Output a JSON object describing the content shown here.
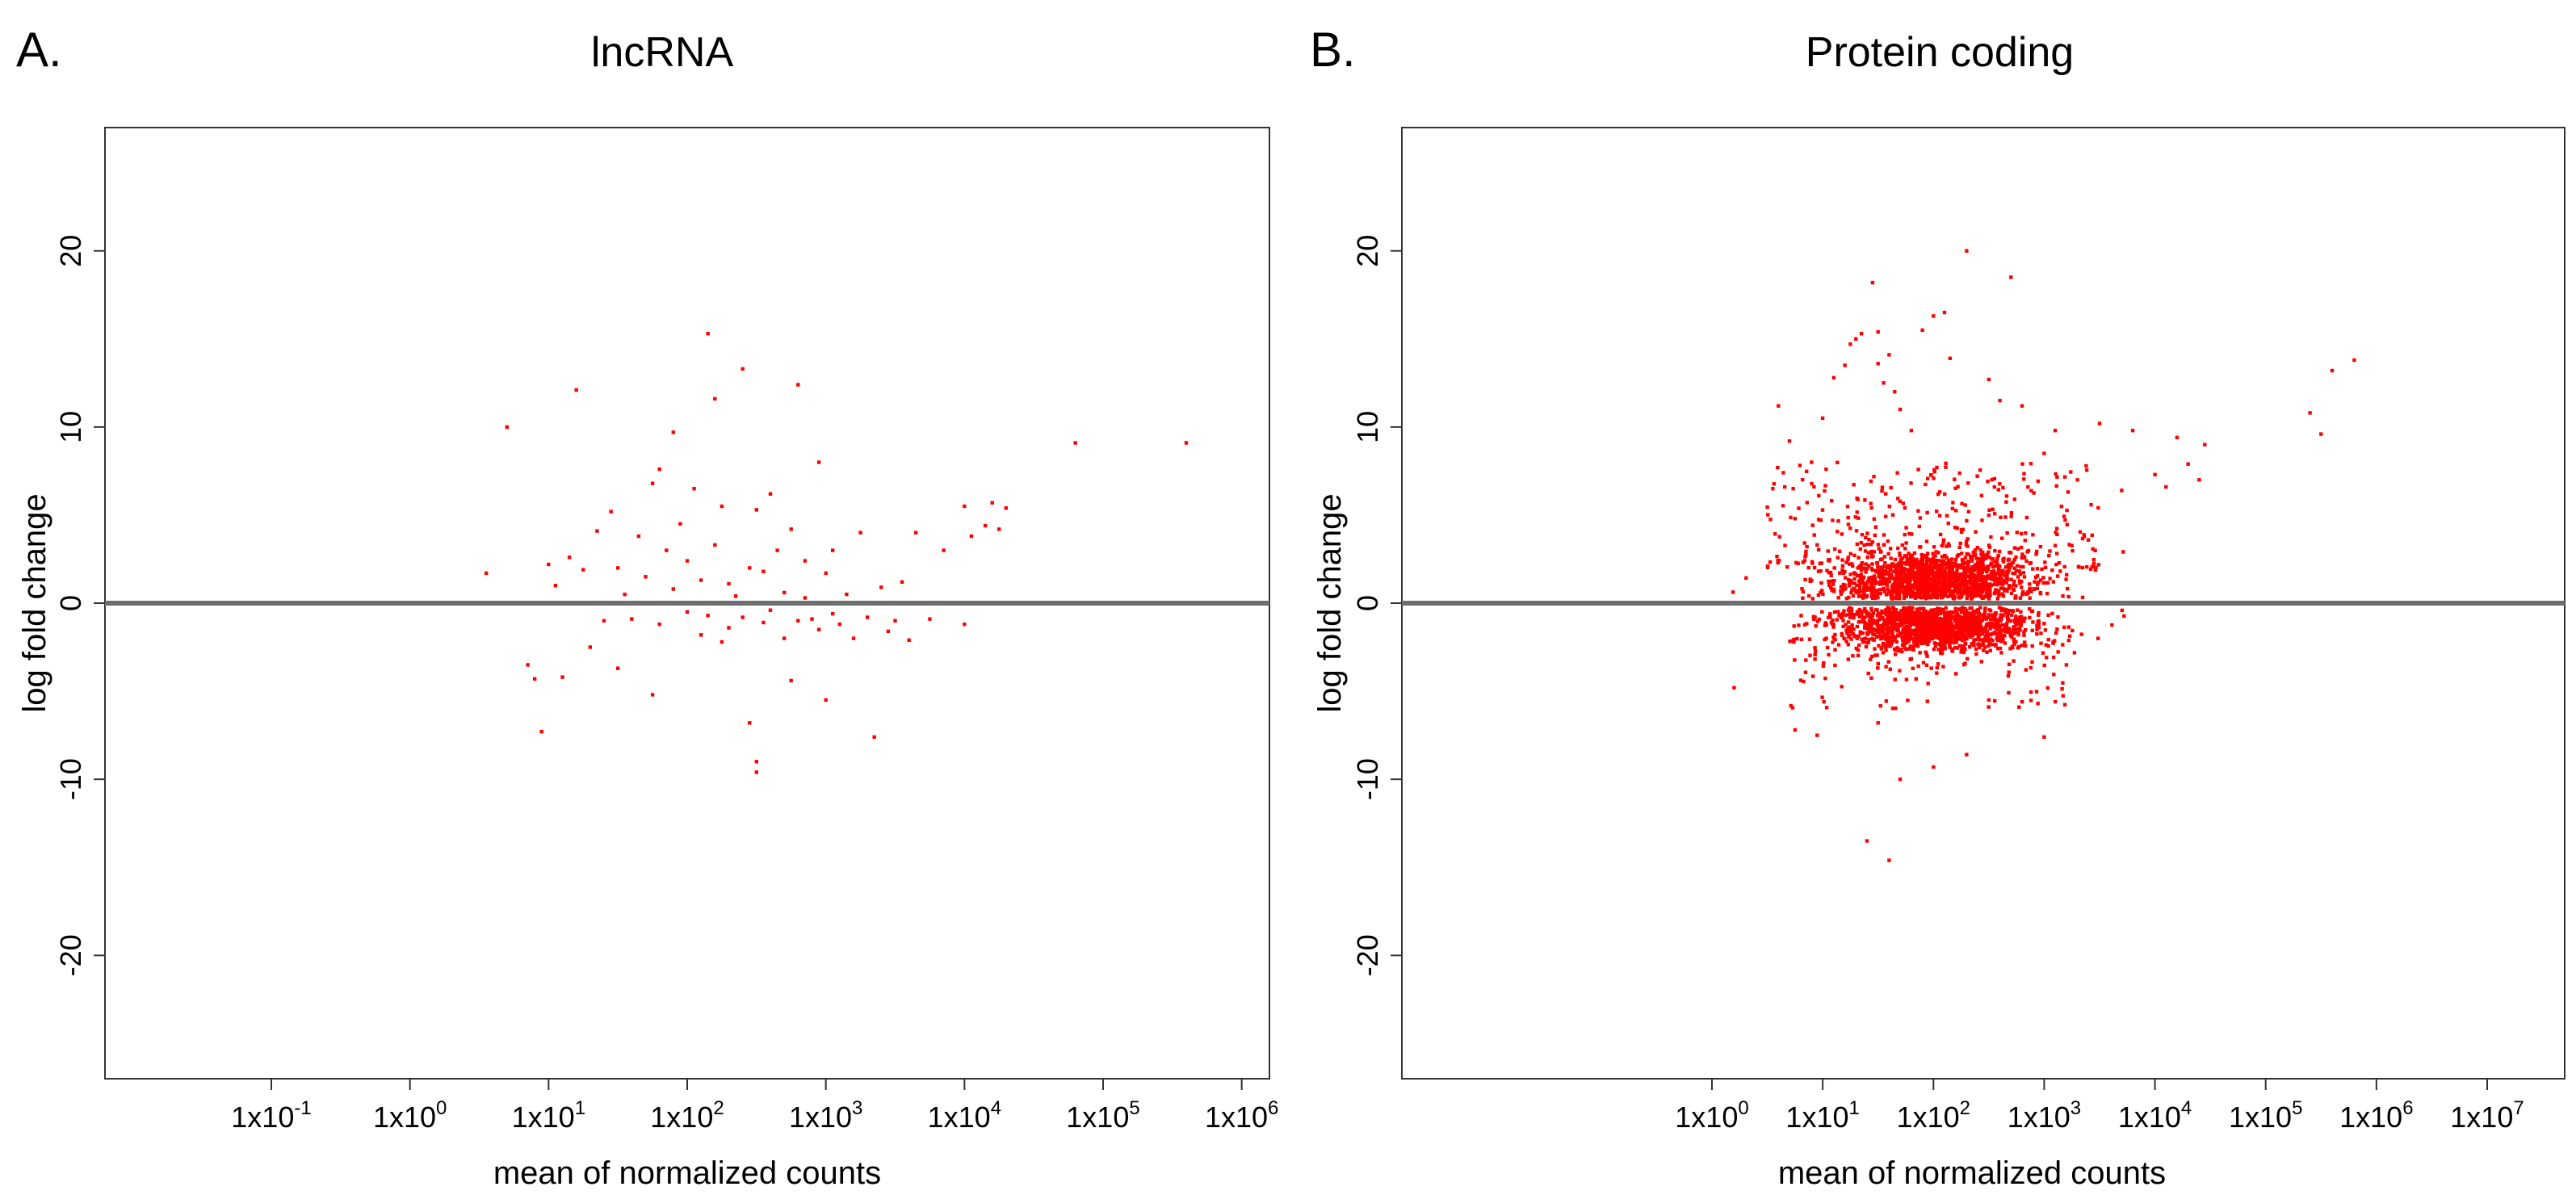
{
  "chart_data": [
    {
      "type": "scatter",
      "panel_label": "A.",
      "title": "lncRNA",
      "xlabel": "mean of normalized counts",
      "ylabel": "log fold change",
      "xscale": "log10",
      "xlim_log10": [
        -2.2,
        6.2
      ],
      "ylim": [
        -27,
        27
      ],
      "x_tick_labels": [
        {
          "exp": -1,
          "base": "1x10",
          "sup": "-1"
        },
        {
          "exp": 0,
          "base": "1x10",
          "sup": "0"
        },
        {
          "exp": 1,
          "base": "1x10",
          "sup": "1"
        },
        {
          "exp": 2,
          "base": "1x10",
          "sup": "2"
        },
        {
          "exp": 3,
          "base": "1x10",
          "sup": "3"
        },
        {
          "exp": 4,
          "base": "1x10",
          "sup": "4"
        },
        {
          "exp": 5,
          "base": "1x10",
          "sup": "5"
        },
        {
          "exp": 6,
          "base": "1x10",
          "sup": "6"
        }
      ],
      "y_ticks": [
        {
          "value": -20,
          "label": "-20"
        },
        {
          "value": -10,
          "label": "-10"
        },
        {
          "value": 0,
          "label": "0"
        },
        {
          "value": 10,
          "label": "10"
        },
        {
          "value": 20,
          "label": "20"
        }
      ],
      "zero_line": 0,
      "point_color": "#ff0000",
      "line_color": "#6e6e6e",
      "points_log10x_y": [
        [
          0.55,
          1.7
        ],
        [
          0.7,
          10
        ],
        [
          0.85,
          -3.5
        ],
        [
          0.9,
          -4.3
        ],
        [
          0.95,
          -7.3
        ],
        [
          1.0,
          2.2
        ],
        [
          1.05,
          1.0
        ],
        [
          1.1,
          -4.2
        ],
        [
          1.15,
          2.6
        ],
        [
          1.2,
          12.1
        ],
        [
          1.25,
          1.9
        ],
        [
          1.3,
          -2.5
        ],
        [
          1.35,
          4.1
        ],
        [
          1.4,
          -1.0
        ],
        [
          1.45,
          5.2
        ],
        [
          1.5,
          -3.7
        ],
        [
          1.5,
          2.0
        ],
        [
          1.55,
          0.5
        ],
        [
          1.6,
          -0.9
        ],
        [
          1.65,
          3.8
        ],
        [
          1.7,
          1.5
        ],
        [
          1.75,
          -5.2
        ],
        [
          1.75,
          6.8
        ],
        [
          1.8,
          7.6
        ],
        [
          1.8,
          -1.2
        ],
        [
          1.85,
          3.0
        ],
        [
          1.9,
          9.7
        ],
        [
          1.9,
          0.8
        ],
        [
          1.95,
          4.5
        ],
        [
          2.0,
          2.4
        ],
        [
          2.0,
          -0.5
        ],
        [
          2.05,
          6.5
        ],
        [
          2.1,
          -1.8
        ],
        [
          2.1,
          1.3
        ],
        [
          2.15,
          15.3
        ],
        [
          2.15,
          -0.7
        ],
        [
          2.2,
          11.6
        ],
        [
          2.2,
          3.3
        ],
        [
          2.25,
          -2.2
        ],
        [
          2.25,
          5.5
        ],
        [
          2.3,
          1.1
        ],
        [
          2.3,
          -1.4
        ],
        [
          2.35,
          0.4
        ],
        [
          2.4,
          13.3
        ],
        [
          2.4,
          -0.8
        ],
        [
          2.45,
          2.0
        ],
        [
          2.45,
          -6.8
        ],
        [
          2.5,
          -9.0
        ],
        [
          2.5,
          -9.6
        ],
        [
          2.5,
          5.3
        ],
        [
          2.55,
          1.8
        ],
        [
          2.55,
          -1.1
        ],
        [
          2.6,
          6.2
        ],
        [
          2.6,
          -0.4
        ],
        [
          2.65,
          3.0
        ],
        [
          2.7,
          -2.0
        ],
        [
          2.7,
          0.6
        ],
        [
          2.75,
          4.2
        ],
        [
          2.75,
          -4.4
        ],
        [
          2.8,
          12.4
        ],
        [
          2.8,
          -1.0
        ],
        [
          2.85,
          2.4
        ],
        [
          2.85,
          0.3
        ],
        [
          2.9,
          -0.9
        ],
        [
          2.95,
          8.0
        ],
        [
          2.95,
          -1.5
        ],
        [
          3.0,
          1.7
        ],
        [
          3.0,
          -5.5
        ],
        [
          3.05,
          -0.6
        ],
        [
          3.05,
          3.0
        ],
        [
          3.1,
          -1.2
        ],
        [
          3.15,
          0.5
        ],
        [
          3.2,
          -2.0
        ],
        [
          3.25,
          4.0
        ],
        [
          3.3,
          -0.8
        ],
        [
          3.35,
          -7.6
        ],
        [
          3.4,
          0.9
        ],
        [
          3.45,
          -1.6
        ],
        [
          3.5,
          -1.0
        ],
        [
          3.55,
          1.2
        ],
        [
          3.6,
          -2.1
        ],
        [
          3.65,
          4.0
        ],
        [
          3.75,
          -0.9
        ],
        [
          3.85,
          3.0
        ],
        [
          4.0,
          5.5
        ],
        [
          4.0,
          -1.2
        ],
        [
          4.05,
          3.8
        ],
        [
          4.15,
          4.4
        ],
        [
          4.2,
          5.7
        ],
        [
          4.25,
          4.2
        ],
        [
          4.3,
          5.4
        ],
        [
          4.8,
          9.1
        ],
        [
          5.6,
          9.1
        ],
        [
          6.3,
          9.2
        ],
        [
          7.1,
          12.3
        ],
        [
          7.4,
          15.5
        ]
      ]
    },
    {
      "type": "scatter",
      "panel_label": "B.",
      "title": "Protein coding",
      "xlabel": "mean of normalized counts",
      "ylabel": "log fold change",
      "xscale": "log10",
      "xlim_log10": [
        -2.8,
        7.7
      ],
      "ylim": [
        -27,
        27
      ],
      "x_tick_labels": [
        {
          "exp": 0,
          "base": "1x10",
          "sup": "0"
        },
        {
          "exp": 1,
          "base": "1x10",
          "sup": "1"
        },
        {
          "exp": 2,
          "base": "1x10",
          "sup": "2"
        },
        {
          "exp": 3,
          "base": "1x10",
          "sup": "3"
        },
        {
          "exp": 4,
          "base": "1x10",
          "sup": "4"
        },
        {
          "exp": 5,
          "base": "1x10",
          "sup": "5"
        },
        {
          "exp": 6,
          "base": "1x10",
          "sup": "6"
        },
        {
          "exp": 7,
          "base": "1x10",
          "sup": "7"
        }
      ],
      "y_ticks": [
        {
          "value": -20,
          "label": "-20"
        },
        {
          "value": -10,
          "label": "-10"
        },
        {
          "value": 0,
          "label": "0"
        },
        {
          "value": 10,
          "label": "10"
        },
        {
          "value": 20,
          "label": "20"
        }
      ],
      "zero_line": 0,
      "point_color": "#ff0000",
      "line_color": "#6e6e6e",
      "cloud": {
        "upper_band": {
          "x_center_log10": 2.0,
          "x_sd_log10": 0.45,
          "y_center": 1.3,
          "y_sd": 0.8,
          "count": 1400
        },
        "lower_band": {
          "x_center_log10": 2.0,
          "x_sd_log10": 0.45,
          "y_center": -1.3,
          "y_sd": 0.7,
          "count": 1400
        },
        "scatter_up": {
          "x_range_log10": [
            0.5,
            3.5
          ],
          "y_range": [
            2,
            8
          ],
          "count": 320
        },
        "scatter_down": {
          "x_range_log10": [
            0.7,
            3.2
          ],
          "y_range": [
            -6,
            -2
          ],
          "count": 120
        }
      },
      "points_log10x_y": [
        [
          0.2,
          -4.8
        ],
        [
          0.75,
          -7.2
        ],
        [
          0.95,
          -7.5
        ],
        [
          1.4,
          -13.5
        ],
        [
          1.6,
          -14.6
        ],
        [
          0.55,
          6.5
        ],
        [
          0.6,
          11.2
        ],
        [
          0.7,
          9.2
        ],
        [
          0.75,
          4.8
        ],
        [
          0.9,
          8.0
        ],
        [
          1.0,
          10.5
        ],
        [
          1.1,
          12.8
        ],
        [
          1.2,
          13.5
        ],
        [
          1.25,
          14.7
        ],
        [
          1.3,
          15.0
        ],
        [
          1.35,
          15.3
        ],
        [
          1.45,
          18.2
        ],
        [
          1.5,
          13.6
        ],
        [
          1.5,
          15.4
        ],
        [
          1.55,
          12.5
        ],
        [
          1.6,
          14.1
        ],
        [
          1.65,
          12.0
        ],
        [
          1.7,
          11.0
        ],
        [
          1.8,
          9.8
        ],
        [
          1.9,
          15.5
        ],
        [
          2.0,
          16.3
        ],
        [
          2.1,
          16.5
        ],
        [
          2.15,
          13.9
        ],
        [
          2.3,
          20.0
        ],
        [
          2.5,
          12.7
        ],
        [
          2.6,
          11.5
        ],
        [
          2.7,
          18.5
        ],
        [
          2.8,
          11.2
        ],
        [
          3.0,
          8.5
        ],
        [
          3.1,
          9.8
        ],
        [
          3.3,
          7.0
        ],
        [
          3.5,
          10.2
        ],
        [
          3.7,
          6.4
        ],
        [
          3.8,
          9.8
        ],
        [
          4.0,
          7.3
        ],
        [
          4.1,
          6.6
        ],
        [
          4.2,
          9.4
        ],
        [
          4.3,
          7.9
        ],
        [
          4.4,
          7.0
        ],
        [
          4.45,
          9.0
        ],
        [
          5.4,
          10.8
        ],
        [
          5.5,
          9.6
        ],
        [
          5.6,
          13.2
        ],
        [
          5.8,
          13.8
        ],
        [
          7.8,
          16.3
        ],
        [
          2.3,
          -8.6
        ],
        [
          2.5,
          -5.5
        ],
        [
          2.0,
          -9.3
        ],
        [
          1.7,
          -10.0
        ],
        [
          3.0,
          -7.6
        ],
        [
          2.8,
          -5.6
        ],
        [
          1.5,
          -6.8
        ],
        [
          3.2,
          -3.5
        ]
      ]
    }
  ]
}
